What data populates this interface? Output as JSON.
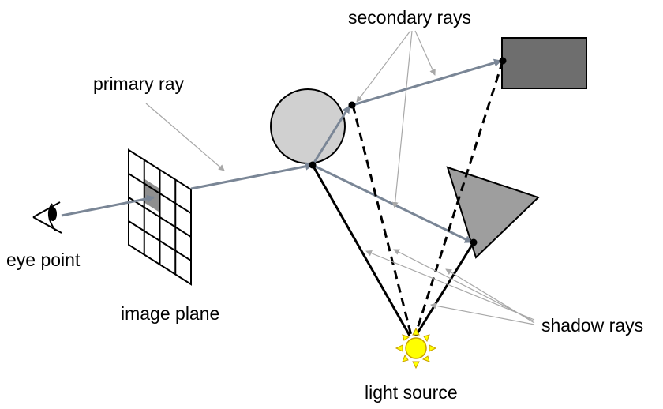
{
  "labels": {
    "secondary_rays": "secondary rays",
    "primary_ray": "primary ray",
    "eye_point": "eye point",
    "image_plane": "image plane",
    "shadow_rays": "shadow rays",
    "light_source": "light source"
  },
  "colors": {
    "ray": "#7a8696",
    "pointer": "#a8a8a8",
    "sphere_fill": "#d0d0d0",
    "triangle_fill": "#9e9e9e",
    "box_fill": "#6e6e6e",
    "pixel_fill": "#8f8f8f",
    "sun_fill": "#ffff00",
    "sun_stroke": "#c8a000"
  }
}
